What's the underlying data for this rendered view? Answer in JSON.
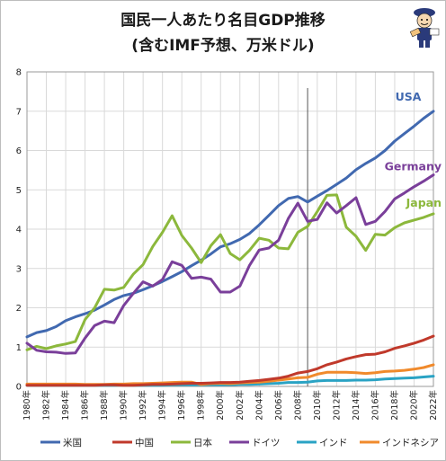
{
  "title_line1": "国民一人あたり名目GDP推移",
  "title_line2": "(含むIMF予想、万米ドル)",
  "colors": {
    "usa": "#4169b0",
    "china": "#c0392b",
    "japan": "#8cb83c",
    "germany": "#7a3f9a",
    "india": "#2aa3c4",
    "indonesia": "#f08a2c"
  },
  "mascot_icon": "student-mascot-icon",
  "chart_data": {
    "type": "line",
    "ylim": [
      0,
      8
    ],
    "yticks": [
      0,
      1,
      2,
      3,
      4,
      5,
      6,
      7,
      8
    ],
    "xlim": [
      1980,
      2022
    ],
    "xtick_labels": [
      "1980年",
      "1982年",
      "1984年",
      "1986年",
      "1988年",
      "1990年",
      "1992年",
      "1994年",
      "1996年",
      "1998年",
      "2000年",
      "2002年",
      "2004年",
      "2006年",
      "2008年",
      "2010年",
      "2012年",
      "2014年",
      "2016年",
      "2018年",
      "2020年",
      "2022年"
    ],
    "forecast_from": 2009,
    "grid": true,
    "x": [
      1980,
      1981,
      1982,
      1983,
      1984,
      1985,
      1986,
      1987,
      1988,
      1989,
      1990,
      1991,
      1992,
      1993,
      1994,
      1995,
      1996,
      1997,
      1998,
      1999,
      2000,
      2001,
      2002,
      2003,
      2004,
      2005,
      2006,
      2007,
      2008,
      2009,
      2010,
      2011,
      2012,
      2013,
      2014,
      2015,
      2016,
      2017,
      2018,
      2019,
      2020,
      2021,
      2022
    ],
    "series": [
      {
        "key": "usa",
        "name": "米国",
        "values": [
          1.26,
          1.37,
          1.42,
          1.52,
          1.67,
          1.77,
          1.85,
          1.94,
          2.07,
          2.21,
          2.31,
          2.37,
          2.46,
          2.56,
          2.67,
          2.79,
          2.92,
          3.07,
          3.21,
          3.37,
          3.55,
          3.63,
          3.74,
          3.89,
          4.11,
          4.35,
          4.6,
          4.78,
          4.83,
          4.69,
          4.84,
          4.98,
          5.14,
          5.3,
          5.51,
          5.67,
          5.81,
          6.0,
          6.24,
          6.43,
          6.62,
          6.82,
          7.0
        ]
      },
      {
        "key": "china",
        "name": "中国",
        "values": [
          0.03,
          0.03,
          0.03,
          0.03,
          0.03,
          0.03,
          0.03,
          0.03,
          0.04,
          0.04,
          0.03,
          0.03,
          0.04,
          0.05,
          0.05,
          0.06,
          0.07,
          0.08,
          0.08,
          0.09,
          0.1,
          0.1,
          0.11,
          0.13,
          0.15,
          0.18,
          0.21,
          0.26,
          0.34,
          0.38,
          0.45,
          0.55,
          0.62,
          0.7,
          0.76,
          0.81,
          0.82,
          0.88,
          0.97,
          1.03,
          1.1,
          1.18,
          1.28
        ]
      },
      {
        "key": "japan",
        "name": "日本",
        "values": [
          0.93,
          1.02,
          0.96,
          1.03,
          1.08,
          1.14,
          1.7,
          2.0,
          2.47,
          2.45,
          2.52,
          2.86,
          3.1,
          3.56,
          3.92,
          4.34,
          3.84,
          3.52,
          3.15,
          3.58,
          3.86,
          3.38,
          3.22,
          3.46,
          3.77,
          3.72,
          3.52,
          3.5,
          3.92,
          4.07,
          4.45,
          4.86,
          4.87,
          4.05,
          3.82,
          3.46,
          3.87,
          3.85,
          4.04,
          4.16,
          4.23,
          4.3,
          4.39
        ]
      },
      {
        "key": "germany",
        "name": "ドイツ",
        "values": [
          1.1,
          0.92,
          0.88,
          0.87,
          0.84,
          0.85,
          1.23,
          1.55,
          1.66,
          1.62,
          2.06,
          2.37,
          2.66,
          2.55,
          2.72,
          3.17,
          3.08,
          2.75,
          2.78,
          2.73,
          2.4,
          2.4,
          2.55,
          3.08,
          3.47,
          3.52,
          3.72,
          4.27,
          4.66,
          4.2,
          4.25,
          4.67,
          4.41,
          4.6,
          4.8,
          4.12,
          4.2,
          4.45,
          4.77,
          4.92,
          5.08,
          5.22,
          5.38
        ]
      },
      {
        "key": "india",
        "name": "インド",
        "values": [
          0.03,
          0.03,
          0.03,
          0.03,
          0.03,
          0.03,
          0.03,
          0.03,
          0.03,
          0.03,
          0.04,
          0.03,
          0.03,
          0.03,
          0.03,
          0.04,
          0.04,
          0.04,
          0.04,
          0.04,
          0.04,
          0.04,
          0.05,
          0.05,
          0.06,
          0.07,
          0.08,
          0.1,
          0.1,
          0.11,
          0.14,
          0.15,
          0.15,
          0.15,
          0.16,
          0.16,
          0.17,
          0.19,
          0.2,
          0.21,
          0.22,
          0.24,
          0.26
        ]
      },
      {
        "key": "indonesia",
        "name": "インドネシア",
        "values": [
          0.06,
          0.06,
          0.06,
          0.06,
          0.06,
          0.06,
          0.05,
          0.05,
          0.05,
          0.06,
          0.06,
          0.07,
          0.07,
          0.08,
          0.09,
          0.1,
          0.11,
          0.11,
          0.05,
          0.07,
          0.08,
          0.07,
          0.09,
          0.1,
          0.11,
          0.13,
          0.16,
          0.19,
          0.22,
          0.23,
          0.31,
          0.36,
          0.36,
          0.36,
          0.35,
          0.33,
          0.35,
          0.38,
          0.39,
          0.41,
          0.44,
          0.48,
          0.55
        ]
      }
    ],
    "annotations": [
      {
        "key": "usa",
        "text": "USA"
      },
      {
        "key": "germany",
        "text": "Germany"
      },
      {
        "key": "japan",
        "text": "Japan"
      }
    ]
  }
}
